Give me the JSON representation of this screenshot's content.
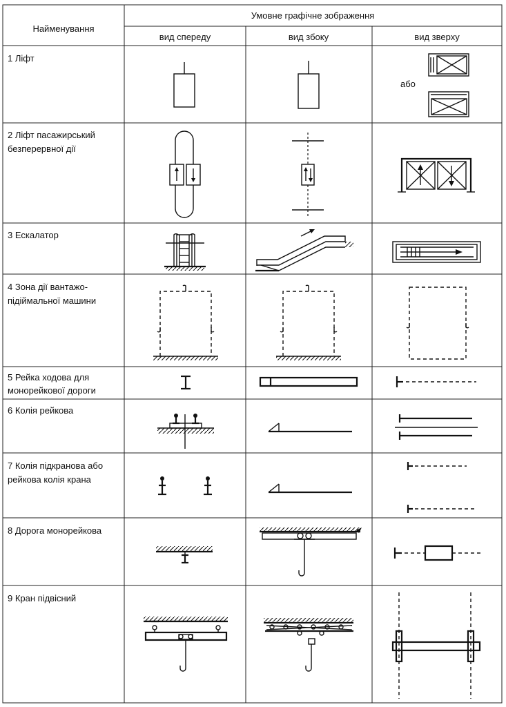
{
  "table": {
    "header_name": "Найменування",
    "header_group": "Умовне графічне зображення",
    "header_views": [
      "вид спереду",
      "вид збоку",
      "вид зверху"
    ],
    "rows": [
      {
        "lines": [
          "1 Ліфт"
        ],
        "note": "або"
      },
      {
        "lines": [
          "2 Ліфт пасажирський",
          "безперервної дії"
        ]
      },
      {
        "lines": [
          "3 Ескалатор"
        ]
      },
      {
        "lines": [
          "4 Зона дії вантажо-",
          "підіймальної машини"
        ]
      },
      {
        "lines": [
          "5 Рейка ходова для",
          "монорейкової дороги"
        ]
      },
      {
        "lines": [
          "6 Колія рейкова"
        ]
      },
      {
        "lines": [
          "7 Колія підкранова або",
          "рейкова колія крана"
        ]
      },
      {
        "lines": [
          "8 Дорога монорейкова"
        ]
      },
      {
        "lines": [
          "9 Кран підвісний"
        ]
      }
    ]
  }
}
